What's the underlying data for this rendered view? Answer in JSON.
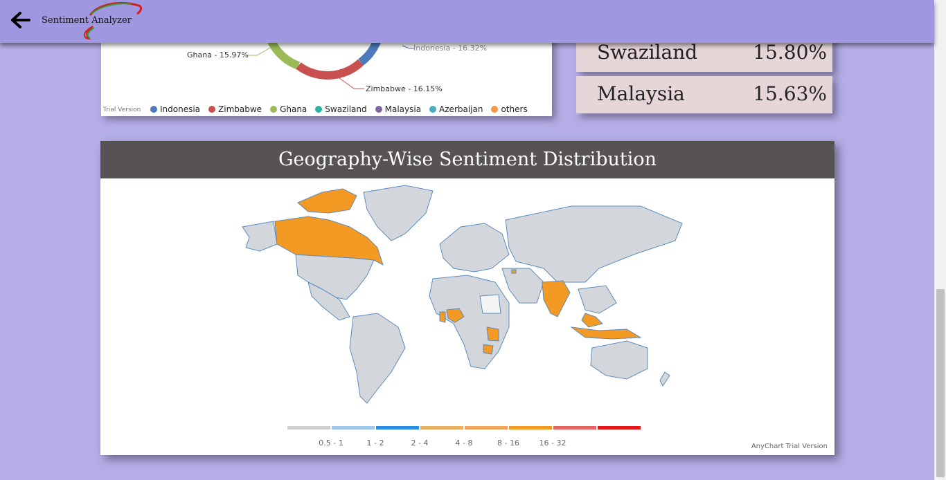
{
  "header": {
    "title": "Sentiment Analyzer",
    "back_icon": "arrow-left-icon",
    "logo_colors": [
      "#2a9a3a",
      "#d22020"
    ]
  },
  "donut": {
    "labels": {
      "ghana": "Ghana - 15.97%",
      "indonesia": "Indonesia - 16.32%",
      "zimbabwe": "Zimbabwe - 16.15%"
    },
    "trial": "Trial Version",
    "legend": [
      {
        "name": "Indonesia",
        "color": "#4e7bbd"
      },
      {
        "name": "Zimbabwe",
        "color": "#c8504e"
      },
      {
        "name": "Ghana",
        "color": "#9bbb59"
      },
      {
        "name": "Swaziland",
        "color": "#27b3a0"
      },
      {
        "name": "Malaysia",
        "color": "#8064a2"
      },
      {
        "name": "Azerbaijan",
        "color": "#4bacc6"
      },
      {
        "name": "others",
        "color": "#f79646"
      }
    ]
  },
  "country_cards": [
    {
      "name": "Swaziland",
      "value": "15.80%"
    },
    {
      "name": "Malaysia",
      "value": "15.63%"
    }
  ],
  "map": {
    "title": "Geography-Wise Sentiment Distribution",
    "highlight_color": "#f39a24",
    "base_color": "#d3d6da",
    "border_color": "#5a8cc0",
    "legend": [
      {
        "label": "",
        "color": "#cfcfcf"
      },
      {
        "label": "0.5 - 1",
        "color": "#9ec8ec"
      },
      {
        "label": "1 - 2",
        "color": "#2b8ce6"
      },
      {
        "label": "2 - 4",
        "color": "#e8b062"
      },
      {
        "label": "4 - 8",
        "color": "#f0a55a"
      },
      {
        "label": "8 - 16",
        "color": "#f39a24"
      },
      {
        "label": "16 - 32",
        "color": "#e46262"
      },
      {
        "label": "",
        "color": "#e01818"
      }
    ],
    "trial_note": "AnyChart Trial Version"
  }
}
